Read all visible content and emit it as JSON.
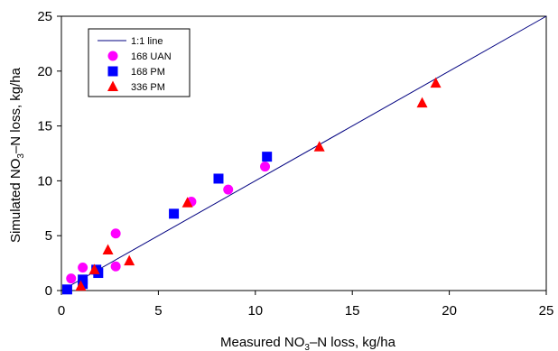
{
  "chart_data": {
    "type": "scatter",
    "title": "",
    "xlabel": {
      "pre": "Measured NO",
      "sub": "3",
      "post": "–N loss, kg/ha"
    },
    "ylabel": {
      "pre": "Simulated NO",
      "sub": "3",
      "post": "–N loss, kg/ha"
    },
    "xlim": [
      0,
      25
    ],
    "ylim": [
      0,
      25
    ],
    "xticks": [
      0,
      5,
      10,
      15,
      20,
      25
    ],
    "yticks": [
      0,
      5,
      10,
      15,
      20,
      25
    ],
    "grid": false,
    "legend_position": "top-left",
    "reference_line": {
      "name": "1:1 line",
      "points": [
        [
          0,
          0
        ],
        [
          25,
          25
        ]
      ],
      "color": "#000080"
    },
    "series": [
      {
        "name": "168 UAN",
        "marker": "circle",
        "color": "#ff00ff",
        "points": [
          [
            0.5,
            1.1
          ],
          [
            1.1,
            2.1
          ],
          [
            2.8,
            5.2
          ],
          [
            2.8,
            2.2
          ],
          [
            6.7,
            8.1
          ],
          [
            8.6,
            9.2
          ],
          [
            10.5,
            11.3
          ]
        ]
      },
      {
        "name": "168 PM",
        "marker": "square",
        "color": "#0000ff",
        "points": [
          [
            0.3,
            0.1
          ],
          [
            1.1,
            1.0
          ],
          [
            1.1,
            0.6
          ],
          [
            1.8,
            1.9
          ],
          [
            1.9,
            1.6
          ],
          [
            5.8,
            7.0
          ],
          [
            8.1,
            10.2
          ],
          [
            10.6,
            12.2
          ]
        ]
      },
      {
        "name": "336 PM",
        "marker": "triangle",
        "color": "#ff0000",
        "points": [
          [
            1.0,
            0.4
          ],
          [
            1.7,
            1.9
          ],
          [
            2.4,
            3.7
          ],
          [
            3.5,
            2.7
          ],
          [
            6.5,
            8.0
          ],
          [
            13.3,
            13.1
          ],
          [
            18.6,
            17.1
          ],
          [
            19.3,
            18.9
          ]
        ]
      }
    ]
  }
}
